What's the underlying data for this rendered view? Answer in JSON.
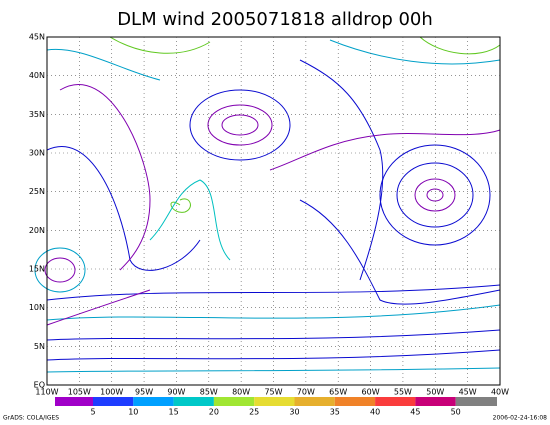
{
  "title": "DLM wind 2005071818 alldrop 00h",
  "map": {
    "lat_labels": [
      "EQ",
      "5N",
      "10N",
      "15N",
      "20N",
      "25N",
      "30N",
      "35N",
      "40N",
      "45N"
    ],
    "lon_labels": [
      "110W",
      "105W",
      "100W",
      "95W",
      "90W",
      "85W",
      "80W",
      "75W",
      "70W",
      "65W",
      "60W",
      "55W",
      "50W",
      "45W",
      "40W"
    ]
  },
  "colorbar": {
    "labels": [
      5,
      10,
      15,
      20,
      25,
      30,
      35,
      40,
      45,
      50
    ]
  },
  "footer": {
    "left": "GrADS: COLA/IGES",
    "right": "2006-02-24-16:08"
  }
}
